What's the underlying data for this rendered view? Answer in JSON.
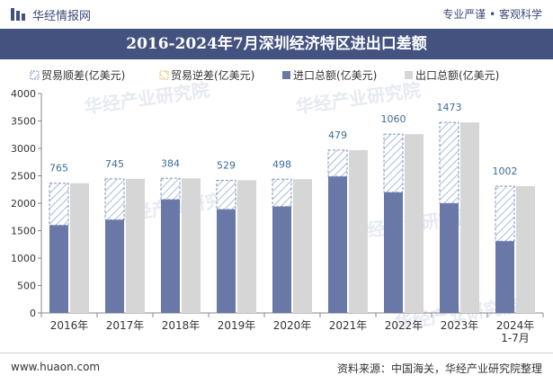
{
  "header": {
    "brand": "华经情报网",
    "tagline": "专业严谨 • 客观科学"
  },
  "footer": {
    "website": "www.huaon.com",
    "source": "资料来源：中国海关，华经产业研究院整理"
  },
  "watermark": "华经产业研究院",
  "colors": {
    "import": "#6a78a8",
    "export": "#d6d6d6",
    "surplus_hatch": "#7f96c0",
    "label": "#3b6d98",
    "titlebar": "#43527f"
  },
  "chart_data": {
    "type": "bar",
    "title": "2016-2024年7月深圳经济特区进出口差额",
    "categories": [
      "2016年",
      "2017年",
      "2018年",
      "2019年",
      "2020年",
      "2021年",
      "2022年",
      "2023年",
      "2024年\n1-7月"
    ],
    "series": [
      {
        "name": "贸易顺差(亿美元)",
        "values": [
          765,
          745,
          384,
          529,
          498,
          479,
          1060,
          1473,
          1002
        ]
      },
      {
        "name": "贸易逆差(亿美元)",
        "values": [
          0,
          0,
          0,
          0,
          0,
          0,
          0,
          0,
          0
        ]
      },
      {
        "name": "进口总额(亿美元)",
        "values": [
          1600,
          1700,
          2070,
          1890,
          1940,
          2490,
          2200,
          2000,
          1310
        ]
      },
      {
        "name": "出口总额(亿美元)",
        "values": [
          2365,
          2445,
          2454,
          2419,
          2438,
          2969,
          3260,
          3473,
          2312
        ]
      }
    ],
    "ylim": [
      0,
      4000
    ],
    "yticks": [
      0,
      500,
      1000,
      1500,
      2000,
      2500,
      3000,
      3500,
      4000
    ],
    "data_labels": [
      "765",
      "745",
      "384",
      "529",
      "498",
      "479",
      "1060",
      "1473",
      "1002"
    ],
    "legend_position": "top",
    "grid": false
  }
}
